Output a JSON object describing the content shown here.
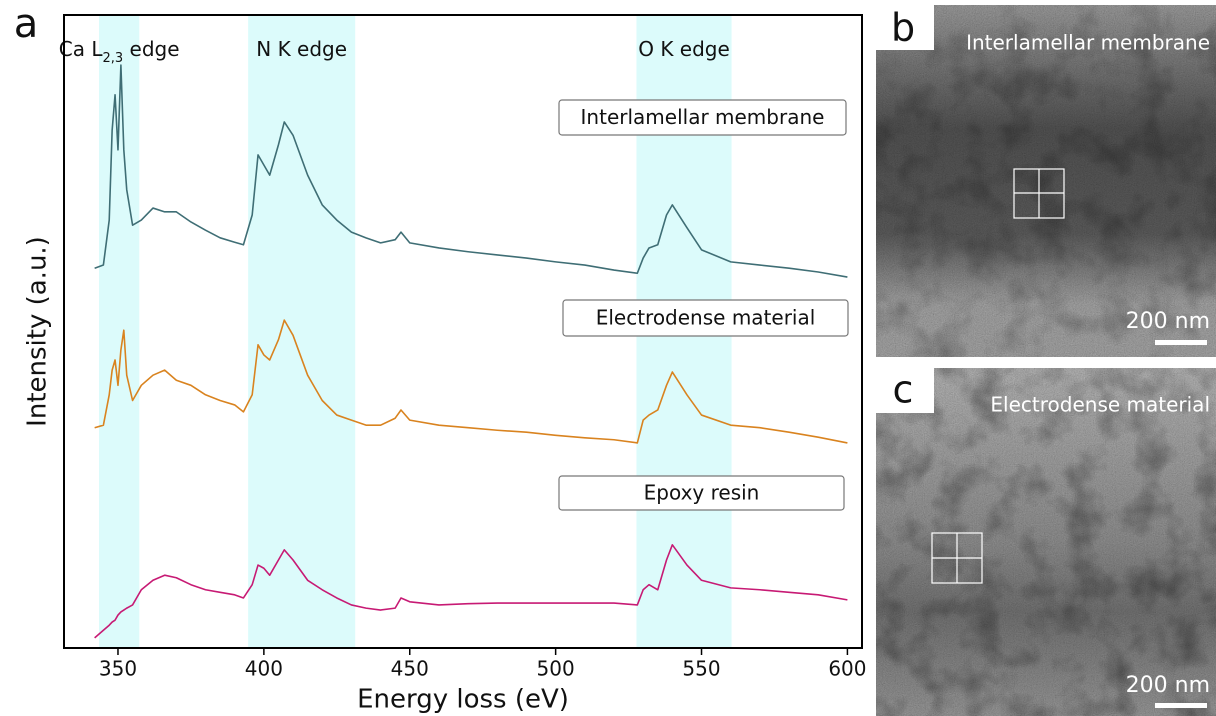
{
  "chart_data": {
    "type": "line",
    "panel_label": "a",
    "xlabel": "Energy loss (eV)",
    "ylabel": "Intensity (a.u.)",
    "xlim": [
      331.5,
      605
    ],
    "xticks": [
      350,
      400,
      450,
      500,
      550,
      600
    ],
    "ylim": [
      0,
      100
    ],
    "band_color": "#dcfbfb",
    "regions": [
      {
        "label": "Ca L",
        "subscript": "2,3",
        "suffix": " edge",
        "range": [
          343.5,
          357.3
        ]
      },
      {
        "label": "N K edge",
        "range": [
          394.6,
          431.3
        ]
      },
      {
        "label": "O K edge",
        "range": [
          527.7,
          560.3
        ]
      }
    ],
    "x": [
      342,
      345,
      347,
      348,
      349,
      350,
      351,
      352,
      353,
      355,
      358,
      362,
      366,
      370,
      375,
      380,
      385,
      390,
      393,
      396,
      398,
      400,
      402,
      405,
      407,
      410,
      415,
      420,
      425,
      430,
      435,
      440,
      445,
      447,
      450,
      460,
      470,
      480,
      490,
      500,
      510,
      520,
      528,
      530,
      532,
      535,
      538,
      540,
      545,
      550,
      560,
      570,
      580,
      590,
      600
    ],
    "series": [
      {
        "name": "Interlamellar membrane",
        "color": "#3f6e75",
        "values": [
          60.0,
          60.5,
          67.6,
          81.8,
          87.4,
          78.7,
          92.1,
          78.7,
          72.4,
          66.8,
          67.6,
          69.5,
          68.9,
          68.9,
          67.3,
          66.0,
          64.8,
          64.1,
          63.7,
          68.4,
          77.9,
          76.3,
          74.7,
          79.5,
          83.1,
          81.0,
          74.7,
          70.0,
          67.6,
          65.7,
          64.8,
          64.0,
          64.5,
          65.7,
          64.0,
          63.2,
          62.6,
          62.1,
          61.6,
          61.0,
          60.5,
          59.7,
          59.2,
          61.6,
          63.2,
          63.7,
          68.4,
          70.0,
          66.4,
          62.9,
          61.0,
          60.5,
          60.0,
          59.4,
          58.6
        ]
      },
      {
        "name": "Electrodense material",
        "color": "#d9831f",
        "values": [
          34.8,
          35.2,
          40.0,
          43.9,
          45.5,
          41.5,
          47.1,
          50.2,
          43.1,
          39.1,
          41.5,
          43.1,
          43.9,
          42.3,
          41.5,
          40.0,
          39.1,
          38.4,
          37.3,
          40.0,
          47.9,
          46.3,
          45.5,
          48.7,
          51.8,
          49.4,
          43.1,
          39.1,
          36.8,
          36.0,
          35.2,
          35.2,
          36.3,
          37.6,
          36.0,
          35.2,
          34.8,
          34.4,
          34.1,
          33.6,
          33.2,
          32.9,
          32.4,
          36.0,
          36.8,
          37.6,
          41.5,
          43.6,
          40.0,
          36.8,
          35.2,
          34.8,
          34.1,
          33.3,
          32.4
        ]
      },
      {
        "name": "Epoxy resin",
        "color": "#c71a74",
        "values": [
          1.6,
          2.8,
          3.6,
          4.1,
          4.4,
          5.2,
          5.7,
          6.0,
          6.3,
          6.8,
          9.2,
          10.7,
          11.5,
          11.1,
          10.0,
          9.2,
          8.8,
          8.4,
          7.9,
          10.0,
          13.1,
          12.6,
          11.5,
          13.9,
          15.5,
          13.9,
          10.7,
          9.2,
          7.9,
          6.8,
          6.3,
          6.0,
          6.3,
          7.9,
          7.3,
          6.8,
          7.0,
          7.1,
          7.1,
          7.1,
          7.1,
          7.1,
          6.8,
          9.2,
          10.0,
          9.2,
          13.9,
          16.3,
          13.1,
          10.7,
          9.5,
          9.2,
          8.8,
          8.4,
          7.6
        ]
      }
    ]
  },
  "images": [
    {
      "panel_label": "b",
      "caption": "Interlamellar membrane",
      "scale_bar": "200 nm"
    },
    {
      "panel_label": "c",
      "caption": "Electrodense material",
      "scale_bar": "200 nm"
    }
  ]
}
